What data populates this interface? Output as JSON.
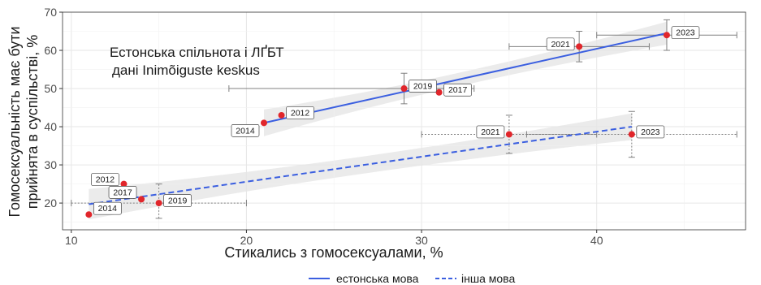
{
  "chart_data": {
    "type": "scatter",
    "xlabel": "Стикались з гомосексуалами, %",
    "ylabel_lines": [
      "Гомосексуальність має бути",
      "прийнята в суспільстві, %"
    ],
    "annotation_lines": [
      "Естонська спільнота і ЛҐБТ",
      "дані Inimõiguste keskus"
    ],
    "xlim": [
      9.5,
      48.5
    ],
    "ylim": [
      13,
      70
    ],
    "x_ticks": [
      10,
      20,
      30,
      40
    ],
    "y_ticks": [
      20,
      30,
      40,
      50,
      60,
      70
    ],
    "series": [
      {
        "name": "естонська мова",
        "line_style": "solid",
        "trend": {
          "x": [
            21,
            44
          ],
          "y": [
            41,
            64.5
          ]
        },
        "points": [
          {
            "label": "2014",
            "x": 21,
            "y": 41
          },
          {
            "label": "2012",
            "x": 22,
            "y": 43
          },
          {
            "label": "2019",
            "x": 29,
            "y": 50,
            "x_err": [
              19,
              33
            ],
            "y_err": [
              46,
              54
            ]
          },
          {
            "label": "2017",
            "x": 31,
            "y": 49
          },
          {
            "label": "2021",
            "x": 39,
            "y": 61,
            "x_err": [
              35,
              43
            ],
            "y_err": [
              57,
              65
            ]
          },
          {
            "label": "2023",
            "x": 44,
            "y": 64,
            "x_err": [
              40,
              48
            ],
            "y_err": [
              60,
              68
            ]
          }
        ]
      },
      {
        "name": "інша мова",
        "line_style": "dashed",
        "trend": {
          "x": [
            11,
            42
          ],
          "y": [
            19.7,
            40
          ]
        },
        "points": [
          {
            "label": "2014",
            "x": 11,
            "y": 17
          },
          {
            "label": "2012",
            "x": 13,
            "y": 25
          },
          {
            "label": "2017",
            "x": 14,
            "y": 21
          },
          {
            "label": "2019",
            "x": 15,
            "y": 20,
            "x_err": [
              10,
              20
            ],
            "y_err": [
              16,
              25
            ]
          },
          {
            "label": "2021",
            "x": 35,
            "y": 38,
            "x_err": [
              30,
              40
            ],
            "y_err": [
              33,
              43
            ]
          },
          {
            "label": "2023",
            "x": 42,
            "y": 38,
            "x_err": [
              36,
              48
            ],
            "y_err": [
              32,
              44
            ]
          }
        ]
      }
    ],
    "legend_position": "bottom",
    "grid": true,
    "colors": {
      "line": "#3b5fe0",
      "point": "#e1262b",
      "band": "#ebebeb",
      "grid": "#e6e6e6",
      "errorbar": "#808080"
    }
  }
}
